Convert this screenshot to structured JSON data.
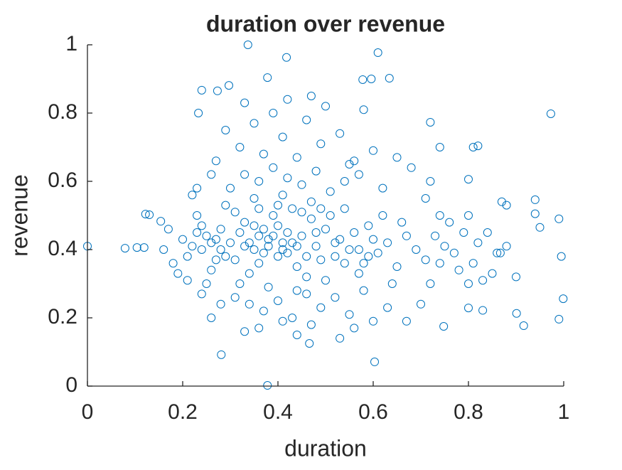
{
  "chart_data": {
    "type": "scatter",
    "title": "duration over revenue",
    "x_label": "duration",
    "y_label": "revenue",
    "color": "#0072BD",
    "xlim": [
      0,
      1
    ],
    "ylim": [
      0,
      1
    ],
    "xticks": [
      0,
      0.2,
      0.4,
      0.6,
      0.8,
      1
    ],
    "yticks": [
      0,
      0.2,
      0.4,
      0.6,
      0.8,
      1
    ],
    "x": [
      0.337,
      0.418,
      0.61,
      0.378,
      0.24,
      0.273,
      0.297,
      0.578,
      0.596,
      0.634,
      0.973,
      0.233,
      0.378,
      0.603,
      0.281,
      0.466,
      0.999,
      0.901,
      0.99,
      0,
      0.079,
      0.104,
      0.119,
      0.122,
      0.13,
      0.154,
      0.916,
      0.748,
      0.99,
      0.94,
      0.95,
      0.995,
      0.94,
      0.8,
      0.81,
      0.82,
      0.72,
      0.74,
      0.9,
      0.867,
      0.87,
      0.88,
      0.83,
      0.8,
      0.8,
      0.3,
      0.32,
      0.35,
      0.38,
      0.4,
      0.42,
      0.45,
      0.48,
      0.5,
      0.52,
      0.28,
      0.33,
      0.36,
      0.39,
      0.41,
      0.44,
      0.47,
      0.49,
      0.53,
      0.55,
      0.25,
      0.27,
      0.31,
      0.34,
      0.37,
      0.43,
      0.46,
      0.51,
      0.56,
      0.58,
      0.22,
      0.24,
      0.26,
      0.29,
      0.32,
      0.35,
      0.38,
      0.41,
      0.44,
      0.47,
      0.5,
      0.54,
      0.57,
      0.59,
      0.61,
      0.63,
      0.65,
      0.67,
      0.69,
      0.71,
      0.2,
      0.21,
      0.23,
      0.18,
      0.17,
      0.19,
      0.16,
      0.62,
      0.64,
      0.66,
      0.3,
      0.33,
      0.36,
      0.39,
      0.42,
      0.45,
      0.48,
      0.51,
      0.54,
      0.57,
      0.31,
      0.34,
      0.37,
      0.4,
      0.43,
      0.46,
      0.49,
      0.52,
      0.55,
      0.58,
      0.27,
      0.32,
      0.37,
      0.41,
      0.44,
      0.49,
      0.53,
      0.56,
      0.6,
      0.35,
      0.29,
      0.39,
      0.46,
      0.5,
      0.42,
      0.33,
      0.58,
      0.47,
      0.55,
      0.62,
      0.25,
      0.28,
      0.26,
      0.24,
      0.23,
      0.26,
      0.22,
      0.21,
      0.33,
      0.36,
      0.41,
      0.44,
      0.47,
      0.53,
      0.56,
      0.6,
      0.63,
      0.67,
      0.7,
      0.72,
      0.73,
      0.75,
      0.74,
      0.76,
      0.77,
      0.78,
      0.79,
      0.8,
      0.81,
      0.82,
      0.84,
      0.86,
      0.85,
      0.88,
      0.83,
      0.71,
      0.72,
      0.68,
      0.65,
      0.74,
      0.34,
      0.36,
      0.38,
      0.4,
      0.42,
      0.37,
      0.39,
      0.43,
      0.35,
      0.41,
      0.31,
      0.33,
      0.44,
      0.46,
      0.48,
      0.52,
      0.54,
      0.57,
      0.6,
      0.59,
      0.26,
      0.28,
      0.29,
      0.27,
      0.24,
      0.23,
      0.36,
      0.4,
      0.45,
      0.49
    ],
    "values": [
      1.0,
      0.963,
      0.977,
      0.904,
      0.867,
      0.865,
      0.881,
      0.898,
      0.9,
      0.902,
      0.798,
      0.8,
      0.002,
      0.071,
      0.092,
      0.125,
      0.256,
      0.213,
      0.196,
      0.41,
      0.404,
      0.406,
      0.406,
      0.504,
      0.502,
      0.483,
      0.177,
      0.175,
      0.49,
      0.546,
      0.465,
      0.38,
      0.505,
      0.606,
      0.7,
      0.704,
      0.773,
      0.7,
      0.32,
      0.39,
      0.54,
      0.53,
      0.222,
      0.229,
      0.3,
      0.42,
      0.45,
      0.4,
      0.43,
      0.47,
      0.39,
      0.44,
      0.41,
      0.46,
      0.38,
      0.4,
      0.48,
      0.36,
      0.5,
      0.42,
      0.35,
      0.49,
      0.37,
      0.43,
      0.4,
      0.44,
      0.37,
      0.51,
      0.33,
      0.46,
      0.52,
      0.32,
      0.5,
      0.45,
      0.36,
      0.41,
      0.47,
      0.34,
      0.53,
      0.3,
      0.55,
      0.29,
      0.56,
      0.28,
      0.54,
      0.31,
      0.52,
      0.33,
      0.47,
      0.39,
      0.42,
      0.35,
      0.44,
      0.4,
      0.37,
      0.43,
      0.38,
      0.5,
      0.36,
      0.46,
      0.33,
      0.4,
      0.5,
      0.3,
      0.48,
      0.58,
      0.62,
      0.6,
      0.64,
      0.61,
      0.59,
      0.63,
      0.57,
      0.6,
      0.62,
      0.26,
      0.24,
      0.22,
      0.25,
      0.2,
      0.27,
      0.23,
      0.26,
      0.21,
      0.28,
      0.66,
      0.7,
      0.68,
      0.73,
      0.67,
      0.71,
      0.74,
      0.66,
      0.69,
      0.77,
      0.75,
      0.8,
      0.78,
      0.82,
      0.84,
      0.83,
      0.81,
      0.85,
      0.65,
      0.58,
      0.3,
      0.24,
      0.2,
      0.27,
      0.58,
      0.62,
      0.56,
      0.31,
      0.16,
      0.17,
      0.19,
      0.15,
      0.18,
      0.14,
      0.17,
      0.19,
      0.23,
      0.19,
      0.24,
      0.3,
      0.44,
      0.41,
      0.36,
      0.48,
      0.39,
      0.34,
      0.45,
      0.5,
      0.36,
      0.42,
      0.45,
      0.39,
      0.33,
      0.41,
      0.31,
      0.55,
      0.6,
      0.64,
      0.67,
      0.5,
      0.42,
      0.44,
      0.41,
      0.38,
      0.45,
      0.39,
      0.44,
      0.42,
      0.47,
      0.4,
      0.37,
      0.41,
      0.41,
      0.38,
      0.45,
      0.42,
      0.36,
      0.4,
      0.43,
      0.38,
      0.42,
      0.46,
      0.38,
      0.43,
      0.4,
      0.45,
      0.52,
      0.53,
      0.51,
      0.52
    ]
  }
}
